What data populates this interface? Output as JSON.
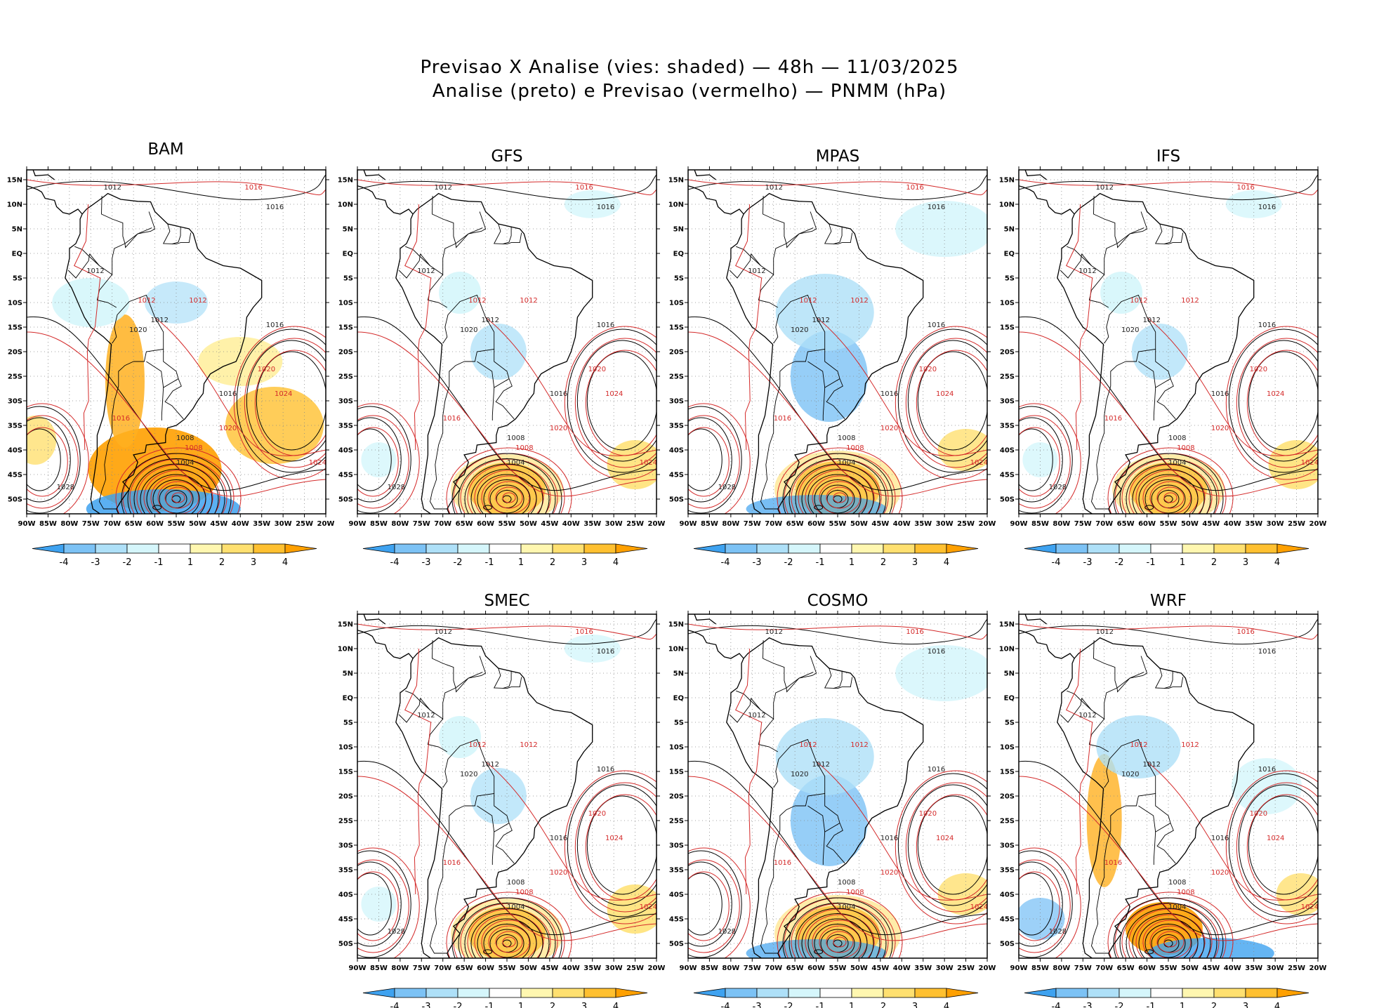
{
  "title": {
    "line1": "Previsao X Analise (vies: shaded) — 48h — 11/03/2025",
    "line2": "Analise (preto) e Previsao (vermelho) — PNMM (hPa)"
  },
  "axes": {
    "lon_labels": [
      "90W",
      "85W",
      "80W",
      "75W",
      "70W",
      "65W",
      "60W",
      "55W",
      "50W",
      "45W",
      "40W",
      "35W",
      "30W",
      "25W",
      "20W"
    ],
    "lat_labels": [
      "15N",
      "10N",
      "5N",
      "EQ",
      "5S",
      "10S",
      "15S",
      "20S",
      "25S",
      "30S",
      "35S",
      "40S",
      "45S",
      "50S"
    ]
  },
  "colorbar": {
    "labels": [
      "-4",
      "-3",
      "-2",
      "-1",
      "1",
      "2",
      "3",
      "4"
    ],
    "colors": [
      "#3ea2f0",
      "#7cc2f5",
      "#aee0f8",
      "#d5f6fb",
      "#ffffff",
      "#fff7b0",
      "#ffe070",
      "#ffc030",
      "#ffa000"
    ]
  },
  "colors": {
    "analysis": "#000000",
    "forecast": "#d42a2a",
    "grid": "#888888"
  },
  "panels": [
    {
      "id": "bam",
      "name": "BAM",
      "style": "warm"
    },
    {
      "id": "gfs",
      "name": "GFS",
      "style": "mild"
    },
    {
      "id": "mpas",
      "name": "MPAS",
      "style": "cool"
    },
    {
      "id": "ifs",
      "name": "IFS",
      "style": "mild"
    },
    {
      "id": "smec",
      "name": "SMEC",
      "style": "mild"
    },
    {
      "id": "cosmo",
      "name": "COSMO",
      "style": "cool"
    },
    {
      "id": "wrf",
      "name": "WRF",
      "style": "mixed"
    }
  ],
  "contour_labels": {
    "analysis": [
      "1012",
      "1016",
      "1016",
      "1012",
      "1012",
      "1020",
      "1008",
      "1004",
      "1028",
      "1016"
    ],
    "forecast": [
      "1016",
      "1012",
      "1020",
      "1024",
      "1016",
      "1020",
      "1024",
      "1012",
      "1008"
    ]
  }
}
